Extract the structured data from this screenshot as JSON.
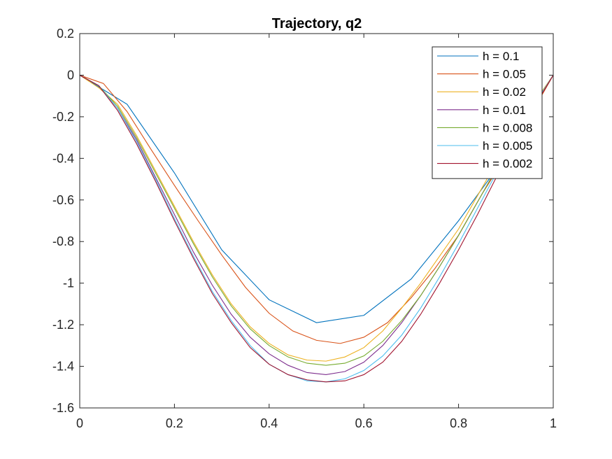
{
  "chart_data": {
    "type": "line",
    "title": "Trajectory, q2",
    "xlabel": "",
    "ylabel": "",
    "xlim": [
      0,
      1
    ],
    "ylim": [
      -1.6,
      0.2
    ],
    "xticks": [
      0,
      0.2,
      0.4,
      0.6,
      0.8,
      1
    ],
    "xtick_labels": [
      "0",
      "0.2",
      "0.4",
      "0.6",
      "0.8",
      "1"
    ],
    "yticks": [
      0.2,
      0,
      -0.2,
      -0.4,
      -0.6,
      -0.8,
      -1,
      -1.2,
      -1.4,
      -1.6
    ],
    "ytick_labels": [
      "0.2",
      "0",
      "-0.2",
      "-0.4",
      "-0.6",
      "-0.8",
      "-1",
      "-1.2",
      "-1.4",
      "-1.6"
    ],
    "grid": false,
    "legend_position": "top-right",
    "series": [
      {
        "name": "h = 0.1",
        "color": "#0072BD",
        "x": [
          0,
          0.1,
          0.2,
          0.3,
          0.4,
          0.5,
          0.6,
          0.7,
          0.8,
          0.9,
          1.0
        ],
        "y": [
          0,
          -0.14,
          -0.47,
          -0.84,
          -1.08,
          -1.19,
          -1.155,
          -0.98,
          -0.7,
          -0.39,
          0
        ]
      },
      {
        "name": "h = 0.05",
        "color": "#D95319",
        "x": [
          0,
          0.05,
          0.1,
          0.15,
          0.2,
          0.25,
          0.3,
          0.35,
          0.4,
          0.45,
          0.5,
          0.55,
          0.6,
          0.65,
          0.7,
          0.75,
          0.8,
          0.85,
          0.9,
          0.95,
          1.0
        ],
        "y": [
          0,
          -0.04,
          -0.175,
          -0.355,
          -0.53,
          -0.7,
          -0.865,
          -1.02,
          -1.145,
          -1.23,
          -1.275,
          -1.29,
          -1.26,
          -1.19,
          -1.07,
          -0.93,
          -0.77,
          -0.57,
          -0.39,
          -0.2,
          0
        ]
      },
      {
        "name": "h = 0.02",
        "color": "#EDB120",
        "x": [
          0,
          0.04,
          0.08,
          0.12,
          0.16,
          0.2,
          0.24,
          0.28,
          0.32,
          0.36,
          0.4,
          0.44,
          0.48,
          0.52,
          0.56,
          0.6,
          0.64,
          0.68,
          0.72,
          0.76,
          0.8,
          0.84,
          0.88,
          0.92,
          0.96,
          1.0
        ],
        "y": [
          0,
          -0.06,
          -0.14,
          -0.29,
          -0.46,
          -0.63,
          -0.8,
          -0.96,
          -1.1,
          -1.21,
          -1.29,
          -1.345,
          -1.37,
          -1.375,
          -1.355,
          -1.31,
          -1.23,
          -1.12,
          -1.0,
          -0.87,
          -0.74,
          -0.58,
          -0.42,
          -0.27,
          -0.13,
          0
        ]
      },
      {
        "name": "h = 0.01",
        "color": "#7E2F8E",
        "x": [
          0,
          0.04,
          0.08,
          0.12,
          0.16,
          0.2,
          0.24,
          0.28,
          0.32,
          0.36,
          0.4,
          0.44,
          0.48,
          0.52,
          0.56,
          0.6,
          0.64,
          0.68,
          0.72,
          0.76,
          0.8,
          0.84,
          0.88,
          0.92,
          0.96,
          1.0
        ],
        "y": [
          0,
          -0.05,
          -0.16,
          -0.31,
          -0.49,
          -0.67,
          -0.85,
          -1.01,
          -1.15,
          -1.26,
          -1.34,
          -1.395,
          -1.43,
          -1.44,
          -1.425,
          -1.38,
          -1.3,
          -1.19,
          -1.06,
          -0.92,
          -0.77,
          -0.61,
          -0.45,
          -0.29,
          -0.14,
          0
        ]
      },
      {
        "name": "h = 0.008",
        "color": "#77AC30",
        "x": [
          0,
          0.04,
          0.08,
          0.12,
          0.16,
          0.2,
          0.24,
          0.28,
          0.32,
          0.36,
          0.4,
          0.44,
          0.48,
          0.52,
          0.56,
          0.6,
          0.64,
          0.68,
          0.72,
          0.76,
          0.8,
          0.84,
          0.88,
          0.92,
          0.96,
          1.0
        ],
        "y": [
          0,
          -0.05,
          -0.15,
          -0.3,
          -0.47,
          -0.64,
          -0.81,
          -0.97,
          -1.11,
          -1.22,
          -1.3,
          -1.355,
          -1.385,
          -1.395,
          -1.385,
          -1.35,
          -1.28,
          -1.18,
          -1.06,
          -0.92,
          -0.77,
          -0.61,
          -0.45,
          -0.29,
          -0.14,
          0
        ]
      },
      {
        "name": "h = 0.005",
        "color": "#4DBEEE",
        "x": [
          0,
          0.04,
          0.08,
          0.12,
          0.16,
          0.2,
          0.24,
          0.28,
          0.32,
          0.36,
          0.4,
          0.44,
          0.48,
          0.52,
          0.56,
          0.6,
          0.64,
          0.68,
          0.72,
          0.76,
          0.8,
          0.84,
          0.88,
          0.92,
          0.96,
          1.0
        ],
        "y": [
          0,
          -0.05,
          -0.16,
          -0.32,
          -0.5,
          -0.69,
          -0.87,
          -1.04,
          -1.18,
          -1.3,
          -1.39,
          -1.44,
          -1.47,
          -1.475,
          -1.46,
          -1.42,
          -1.35,
          -1.25,
          -1.12,
          -0.97,
          -0.81,
          -0.64,
          -0.47,
          -0.3,
          -0.14,
          0
        ]
      },
      {
        "name": "h = 0.002",
        "color": "#A2142F",
        "x": [
          0,
          0.04,
          0.08,
          0.12,
          0.16,
          0.2,
          0.24,
          0.28,
          0.32,
          0.36,
          0.4,
          0.44,
          0.48,
          0.52,
          0.56,
          0.6,
          0.64,
          0.68,
          0.72,
          0.76,
          0.8,
          0.84,
          0.88,
          0.92,
          0.96,
          1.0
        ],
        "y": [
          0,
          -0.05,
          -0.17,
          -0.33,
          -0.51,
          -0.7,
          -0.88,
          -1.05,
          -1.19,
          -1.31,
          -1.39,
          -1.44,
          -1.465,
          -1.475,
          -1.47,
          -1.44,
          -1.38,
          -1.28,
          -1.15,
          -1.0,
          -0.84,
          -0.67,
          -0.49,
          -0.31,
          -0.15,
          0
        ]
      }
    ]
  }
}
